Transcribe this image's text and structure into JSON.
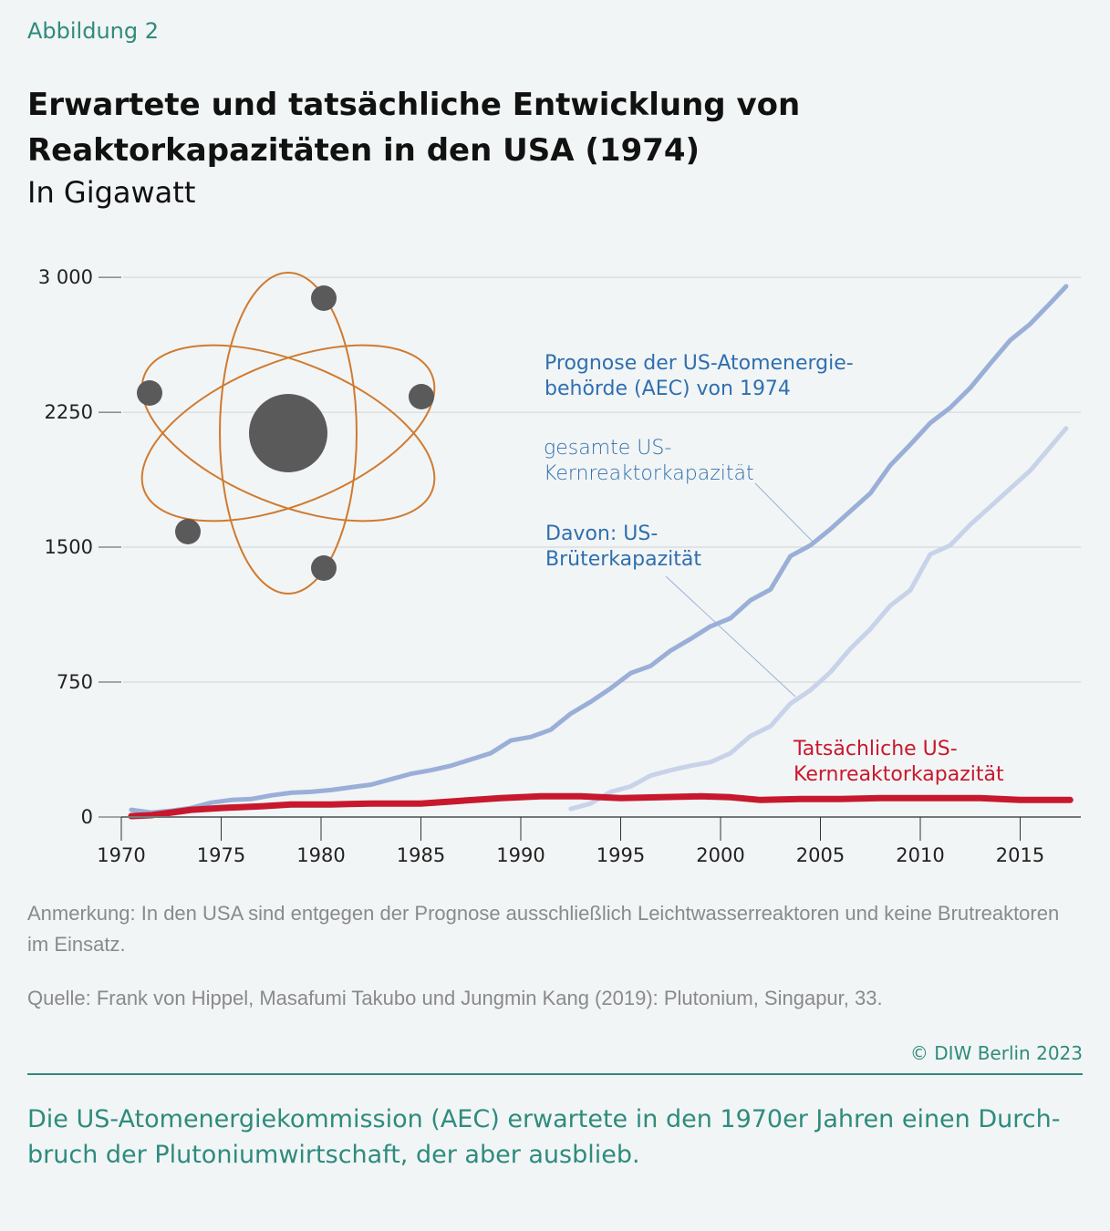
{
  "figure_label": "Abbildung 2",
  "title": "Erwartete und tatsächliche Entwicklung von Reaktorkapazitäten in den USA (1974)",
  "subtitle": "In Gigawatt",
  "annotations": {
    "forecast_heading": "Prognose der US-Atomenergie-behörde (AEC) von 1974",
    "total_label": "gesamte US-Kernreaktorkapazität",
    "breeder_label": "Davon: US-Brüterkapazität",
    "actual_label": "Tatsächliche US-Kernreaktorkapazität"
  },
  "colors": {
    "total": "#9aafd8",
    "breeder": "#c8d3ea",
    "actual": "#c8182e",
    "forecast_text": "#2f6fb0",
    "accent": "#2e8b7e",
    "atom_orbit": "#d07a30",
    "atom_body": "#5a5a5a"
  },
  "icon": "atom-icon",
  "chart_data": {
    "type": "line",
    "xlim": [
      1970,
      2018
    ],
    "ylim": [
      0,
      3000
    ],
    "x_ticks": [
      "1970",
      "1975",
      "1980",
      "1985",
      "1990",
      "1995",
      "2000",
      "2005",
      "2010",
      "2015"
    ],
    "y_ticks": [
      "0",
      "750",
      "1500",
      "2250",
      "3 000"
    ],
    "y_tick_values": [
      0,
      750,
      1500,
      2250,
      3000
    ],
    "x_tick_values": [
      1970,
      1975,
      1980,
      1985,
      1990,
      1995,
      2000,
      2005,
      2010,
      2015
    ],
    "grid": "horizontal",
    "series": [
      {
        "key": "total",
        "x": [
          1970.5,
          1971.5,
          1972.5,
          1973.5,
          1974.5,
          1975.5,
          1976.5,
          1977.5,
          1978.5,
          1979.5,
          1980.5,
          1981.5,
          1982.5,
          1983.5,
          1984.5,
          1985.5,
          1986.5,
          1987.5,
          1988.5,
          1989.5,
          1990.5,
          1991.5,
          1992.5,
          1993.5,
          1994.5,
          1995.5,
          1996.5,
          1997.5,
          1998.5,
          1999.5,
          2000.5,
          2001.5,
          2002.5,
          2003.5,
          2004.5,
          2005.5,
          2006.5,
          2007.5,
          2008.5,
          2009.5,
          2010.5,
          2011.5,
          2012.5,
          2013.5,
          2014.5,
          2015.5,
          2016.5,
          2017.3
        ],
        "y": [
          40,
          25,
          35,
          50,
          80,
          95,
          100,
          120,
          135,
          140,
          150,
          165,
          180,
          210,
          240,
          260,
          285,
          320,
          355,
          425,
          445,
          485,
          575,
          640,
          715,
          800,
          840,
          925,
          990,
          1060,
          1105,
          1205,
          1265,
          1450,
          1510,
          1600,
          1700,
          1800,
          1955,
          2070,
          2190,
          2275,
          2385,
          2520,
          2650,
          2740,
          2855,
          2950
        ]
      },
      {
        "key": "breeder",
        "x": [
          1992.5,
          1993.5,
          1994.5,
          1995.5,
          1996.5,
          1997.5,
          1998.5,
          1999.5,
          2000.5,
          2001.5,
          2002.5,
          2003.5,
          2004.5,
          2005.5,
          2006.5,
          2007.5,
          2008.5,
          2009.5,
          2010.5,
          2011.5,
          2012.5,
          2013.5,
          2014.5,
          2015.5,
          2016.5,
          2017.3
        ],
        "y": [
          45,
          75,
          140,
          170,
          230,
          260,
          285,
          305,
          355,
          450,
          505,
          630,
          705,
          805,
          935,
          1045,
          1175,
          1260,
          1460,
          1510,
          1625,
          1725,
          1825,
          1925,
          2055,
          2160
        ]
      },
      {
        "key": "actual",
        "x": [
          1970.5,
          1971.5,
          1972.5,
          1973.5,
          1975,
          1977,
          1978.5,
          1980.5,
          1982.5,
          1985,
          1987,
          1989,
          1991,
          1993,
          1995,
          1997,
          1999,
          2000.5,
          2002,
          2004,
          2006,
          2008,
          2010,
          2013,
          2015,
          2017.5
        ],
        "y": [
          5,
          10,
          25,
          40,
          50,
          60,
          70,
          70,
          75,
          75,
          90,
          105,
          115,
          115,
          105,
          110,
          115,
          110,
          95,
          100,
          100,
          105,
          105,
          105,
          95,
          95
        ]
      }
    ]
  },
  "note": "Anmerkung: In den USA sind entgegen der Prognose ausschließlich Leichtwasserreaktoren und keine Brutreaktoren im Einsatz.",
  "source": "Quelle: Frank von Hippel, Masafumi Takubo und Jungmin Kang (2019): Plutonium, Singapur, 33.",
  "copyright": "© DIW Berlin 2023",
  "caption": "Die US-Atomenergiekommission (AEC) erwartete in den 1970er Jahren einen Durch­bruch der Plutoniumwirtschaft, der aber ausblieb."
}
